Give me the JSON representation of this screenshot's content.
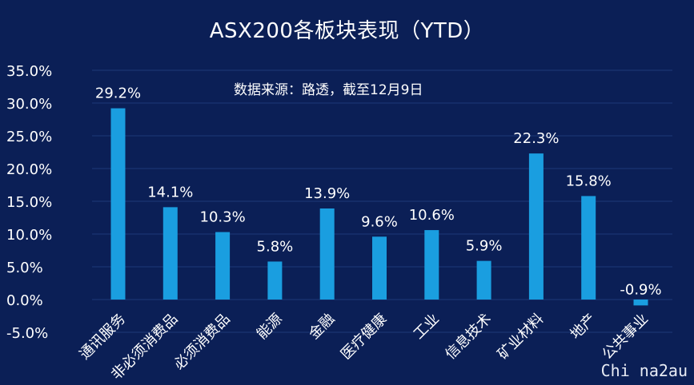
{
  "chart_data": {
    "type": "bar",
    "title": "ASX200各板块表现（YTD）",
    "annotation": "数据来源：路透，截至12月9日",
    "categories": [
      "通讯服务",
      "非必须消费品",
      "必须消费品",
      "能源",
      "金融",
      "医疗健康",
      "工业",
      "信息技术",
      "矿业材料",
      "地产",
      "公共事业"
    ],
    "series": [
      {
        "values": [
          29.2,
          14.1,
          10.3,
          5.8,
          13.9,
          9.6,
          10.6,
          5.9,
          22.3,
          15.8,
          -0.9
        ]
      }
    ],
    "data_labels": [
      "29.2%",
      "14.1%",
      "10.3%",
      "5.8%",
      "13.9%",
      "9.6%",
      "10.6%",
      "5.9%",
      "22.3%",
      "15.8%",
      "-0.9%"
    ],
    "y_ticks": [
      35,
      30,
      25,
      20,
      15,
      10,
      5,
      0,
      -5
    ],
    "y_tick_labels": [
      "35.0%",
      "30.0%",
      "25.0%",
      "20.0%",
      "15.0%",
      "10.0%",
      "5.0%",
      "0.0%",
      "-5.0%"
    ],
    "ylim": [
      -5,
      35
    ],
    "xlabel": "",
    "ylabel": "",
    "grid": true,
    "legend": "none",
    "colors": {
      "background": "#0b1f56",
      "bar": "#1a9ee0",
      "grid": "#1c3878",
      "text": "#ffffff"
    }
  },
  "watermark": "Chi na2au"
}
